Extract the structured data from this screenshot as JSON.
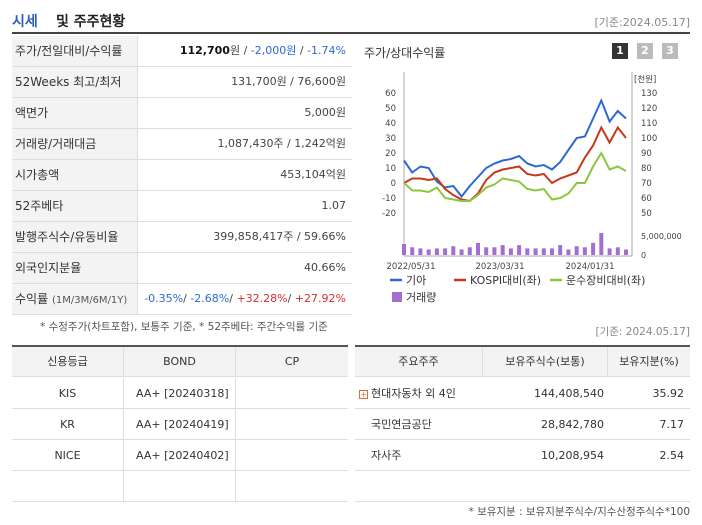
{
  "header": {
    "title_main": "시세",
    "title_rest": "및 주주현황",
    "date": "[기준:2024.05.17]"
  },
  "info_rows": [
    {
      "label": "주가/전일대비/수익률",
      "values": [
        {
          "text": "112,700",
          "cls": "bold"
        },
        {
          "text": "원 / ",
          "cls": ""
        },
        {
          "text": "-2,000원",
          "cls": "blue"
        },
        {
          "text": " / ",
          "cls": ""
        },
        {
          "text": "-1.74%",
          "cls": "blue"
        }
      ]
    },
    {
      "label": "52Weeks 최고/최저",
      "values": [
        {
          "text": "131,700원 / 76,600원",
          "cls": ""
        }
      ]
    },
    {
      "label": "액면가",
      "values": [
        {
          "text": "5,000원",
          "cls": ""
        }
      ]
    },
    {
      "label": "거래량/거래대금",
      "values": [
        {
          "text": "1,087,430주 / 1,242억원",
          "cls": ""
        }
      ]
    },
    {
      "label": "시가총액",
      "values": [
        {
          "text": "453,104억원",
          "cls": ""
        }
      ]
    },
    {
      "label": "52주베타",
      "values": [
        {
          "text": "1.07",
          "cls": ""
        }
      ]
    },
    {
      "label": "발행주식수/유동비율",
      "values": [
        {
          "text": "399,858,417주 / 59.66%",
          "cls": ""
        }
      ]
    },
    {
      "label": "외국인지분율",
      "values": [
        {
          "text": "40.66%",
          "cls": ""
        }
      ]
    },
    {
      "label": "수익률",
      "label_small": "(1M/3M/6M/1Y)",
      "values": [
        {
          "text": "-0.35%",
          "cls": "blue"
        },
        {
          "text": "/ ",
          "cls": ""
        },
        {
          "text": "-2.68%",
          "cls": "blue"
        },
        {
          "text": "/ ",
          "cls": ""
        },
        {
          "text": "+32.28%",
          "cls": "red"
        },
        {
          "text": "/ ",
          "cls": ""
        },
        {
          "text": "+27.92%",
          "cls": "red"
        }
      ]
    }
  ],
  "note_left": "* 수정주가(차트포함), 보통주 기준, * 52주베타: 주간수익률 기준",
  "chart": {
    "title": "주가/상대수익률",
    "tabs": [
      "1",
      "2",
      "3"
    ],
    "right_unit": "[천원]",
    "volume_label": "5,000,000"
  },
  "chart_data": {
    "type": "line",
    "x_labels": [
      "2022/05/31",
      "2023/03/31",
      "2024/01/31"
    ],
    "left_axis": {
      "ticks": [
        60,
        50,
        40,
        30,
        20,
        10,
        0,
        -10,
        -20
      ],
      "range": [
        -20,
        60
      ]
    },
    "right_axis": {
      "ticks": [
        130,
        120,
        110,
        100,
        90,
        80,
        70,
        60,
        50
      ],
      "range": [
        50,
        130
      ]
    },
    "series": [
      {
        "name": "기아",
        "color": "#2d6ad0",
        "values": [
          15,
          7,
          11,
          10,
          1,
          -3,
          -2,
          -9,
          -2,
          4,
          10,
          13,
          15,
          16,
          18,
          13,
          11,
          12,
          9,
          14,
          22,
          30,
          31,
          43,
          55,
          41,
          48,
          43
        ]
      },
      {
        "name": "KOSPI대비(좌)",
        "color": "#c33a1c",
        "values": [
          0,
          3,
          3,
          2,
          3,
          -4,
          -8,
          -11,
          -12,
          -7,
          2,
          7,
          9,
          10,
          11,
          6,
          5,
          6,
          0,
          3,
          5,
          7,
          17,
          25,
          37,
          27,
          37,
          30
        ]
      },
      {
        "name": "운수장비대비(좌)",
        "color": "#8cc63e",
        "values": [
          0,
          -5,
          -5,
          -6,
          -3,
          -10,
          -11,
          -12,
          -12,
          -8,
          -3,
          -1,
          3,
          2,
          1,
          -4,
          -5,
          -4,
          -11,
          -10,
          -7,
          0,
          0,
          11,
          20,
          9,
          11,
          8
        ]
      }
    ],
    "volume_series": {
      "name": "거래량",
      "color": "#a36ed0",
      "values": [
        0.5,
        0.35,
        0.3,
        0.25,
        0.3,
        0.3,
        0.4,
        0.25,
        0.35,
        0.55,
        0.35,
        0.35,
        0.45,
        0.3,
        0.45,
        0.3,
        0.3,
        0.3,
        0.3,
        0.45,
        0.25,
        0.4,
        0.35,
        0.55,
        1.0,
        0.3,
        0.35,
        0.25
      ]
    }
  },
  "date2": "[기준: 2024.05.17]",
  "credit_table": {
    "headers": [
      "신용등급",
      "BOND",
      "CP"
    ],
    "rows": [
      {
        "agency": "KIS",
        "bond": "AA+ [20240318]",
        "cp": ""
      },
      {
        "agency": "KR",
        "bond": "AA+ [20240419]",
        "cp": ""
      },
      {
        "agency": "NICE",
        "bond": "AA+ [20240402]",
        "cp": ""
      },
      {
        "agency": "",
        "bond": "",
        "cp": ""
      }
    ]
  },
  "holder_table": {
    "headers": [
      "주요주주",
      "보유주식수(보통)",
      "보유지분(%)"
    ],
    "rows": [
      {
        "name": "현대자동차 외 4인",
        "shares": "144,408,540",
        "pct": "35.92",
        "expand": true
      },
      {
        "name": "국민연금공단",
        "shares": "28,842,780",
        "pct": "7.17",
        "expand": false
      },
      {
        "name": "자사주",
        "shares": "10,208,954",
        "pct": "2.54",
        "expand": false
      }
    ]
  },
  "note_right": "* 보유지분 : 보유지분주식수/지수산정주식수*100"
}
